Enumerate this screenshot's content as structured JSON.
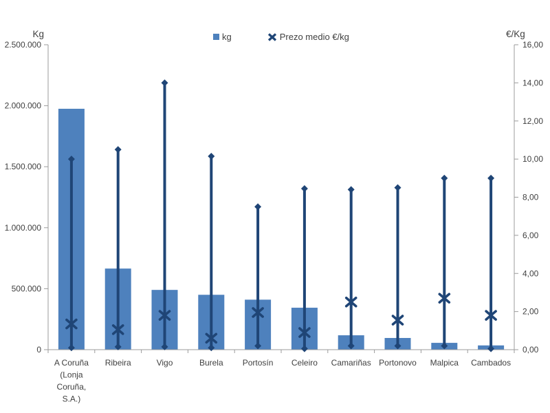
{
  "chart_data": {
    "type": "bar",
    "title": "",
    "legend_position": "top",
    "grid": false,
    "legend": [
      {
        "label": "kg",
        "marker": "square"
      },
      {
        "label": "Prezo medio €/kg",
        "marker": "x"
      }
    ],
    "categories": [
      "A Coruña (Lonja Coruña, S.A.)",
      "Ribeira",
      "Vigo",
      "Burela",
      "Portosín",
      "Celeiro",
      "Camariñas",
      "Portonovo",
      "Malpica",
      "Cambados"
    ],
    "category_label_lines": [
      [
        "A Coruña",
        "(Lonja",
        "Coruña,",
        "S.A.)"
      ],
      [
        "Ribeira"
      ],
      [
        "Vigo"
      ],
      [
        "Burela"
      ],
      [
        "Portosín"
      ],
      [
        "Celeiro"
      ],
      [
        "Camariñas"
      ],
      [
        "Portonovo"
      ],
      [
        "Malpica"
      ],
      [
        "Cambados"
      ]
    ],
    "series": [
      {
        "name": "kg",
        "type": "bar",
        "axis": "left",
        "values": [
          1975000,
          665000,
          490000,
          450000,
          410000,
          344000,
          118000,
          96000,
          56000,
          35000
        ]
      },
      {
        "name": "Prezo medio €/kg",
        "type": "scatter_x",
        "axis": "right",
        "values": [
          1.35,
          1.05,
          1.8,
          0.6,
          1.95,
          0.9,
          2.5,
          1.55,
          2.7,
          1.8
        ]
      }
    ],
    "price_range": {
      "axis": "right",
      "high": [
        10.0,
        10.5,
        14.0,
        10.15,
        7.5,
        8.45,
        8.4,
        8.5,
        9.0,
        9.0
      ],
      "low": [
        0.1,
        0.15,
        0.15,
        0.1,
        0.2,
        0.05,
        0.2,
        0.2,
        0.2,
        0.05
      ]
    },
    "left_axis": {
      "title": "Kg",
      "min": 0,
      "max": 2500000,
      "step": 500000,
      "tick_labels": [
        "2.500.000",
        "2.000.000",
        "1.500.000",
        "1.000.000",
        "500.000",
        "0"
      ]
    },
    "right_axis": {
      "title": "€/Kg",
      "min": 0,
      "max": 16,
      "step": 2,
      "tick_labels": [
        "16,00",
        "14,00",
        "12,00",
        "10,00",
        "8,00",
        "6,00",
        "4,00",
        "2,00",
        "0,00"
      ]
    },
    "colors": {
      "bar": "#4E81BD",
      "line": "#1F4576",
      "axis": "#9B9B9B",
      "text": "#404040"
    }
  }
}
